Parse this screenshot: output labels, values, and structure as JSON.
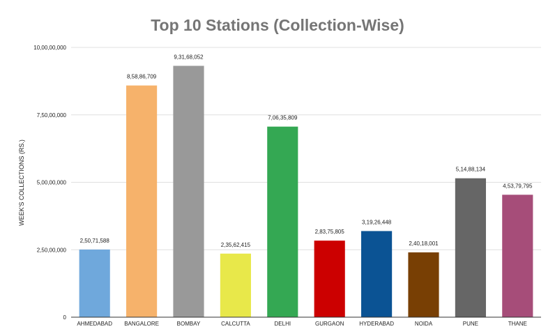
{
  "chart_data": {
    "type": "bar",
    "title": "Top 10 Stations (Collection-Wise)",
    "xlabel": "",
    "ylabel": "WEEK'S COLLECTIONS (RS.)",
    "ylim": [
      0,
      100000000
    ],
    "yticks": [
      {
        "value": 0,
        "label": "0"
      },
      {
        "value": 25000000,
        "label": "2,50,00,000"
      },
      {
        "value": 50000000,
        "label": "5,00,00,000"
      },
      {
        "value": 75000000,
        "label": "7,50,00,000"
      },
      {
        "value": 100000000,
        "label": "10,00,00,000"
      }
    ],
    "grid": true,
    "legend": "none",
    "categories": [
      "AHMEDABAD",
      "BANGALORE",
      "BOMBAY",
      "CALCUTTA",
      "DELHI",
      "GURGAON",
      "HYDERABAD",
      "NOIDA",
      "PUNE",
      "THANE"
    ],
    "values": [
      25071588,
      85886709,
      93168052,
      23562415,
      70635809,
      28375805,
      31926448,
      24018001,
      51488134,
      45379795
    ],
    "data_labels": [
      "2,50,71,588",
      "8,58,86,709",
      "9,31,68,052",
      "2,35,62,415",
      "7,06,35,809",
      "2,83,75,805",
      "3,19,26,448",
      "2,40,18,001",
      "5,14,88,134",
      "4,53,79,795"
    ],
    "colors": [
      "#6fa8dc",
      "#f6b26b",
      "#999999",
      "#e8e84a",
      "#34a853",
      "#cc0000",
      "#0b5394",
      "#783f04",
      "#666666",
      "#a64d79"
    ]
  }
}
